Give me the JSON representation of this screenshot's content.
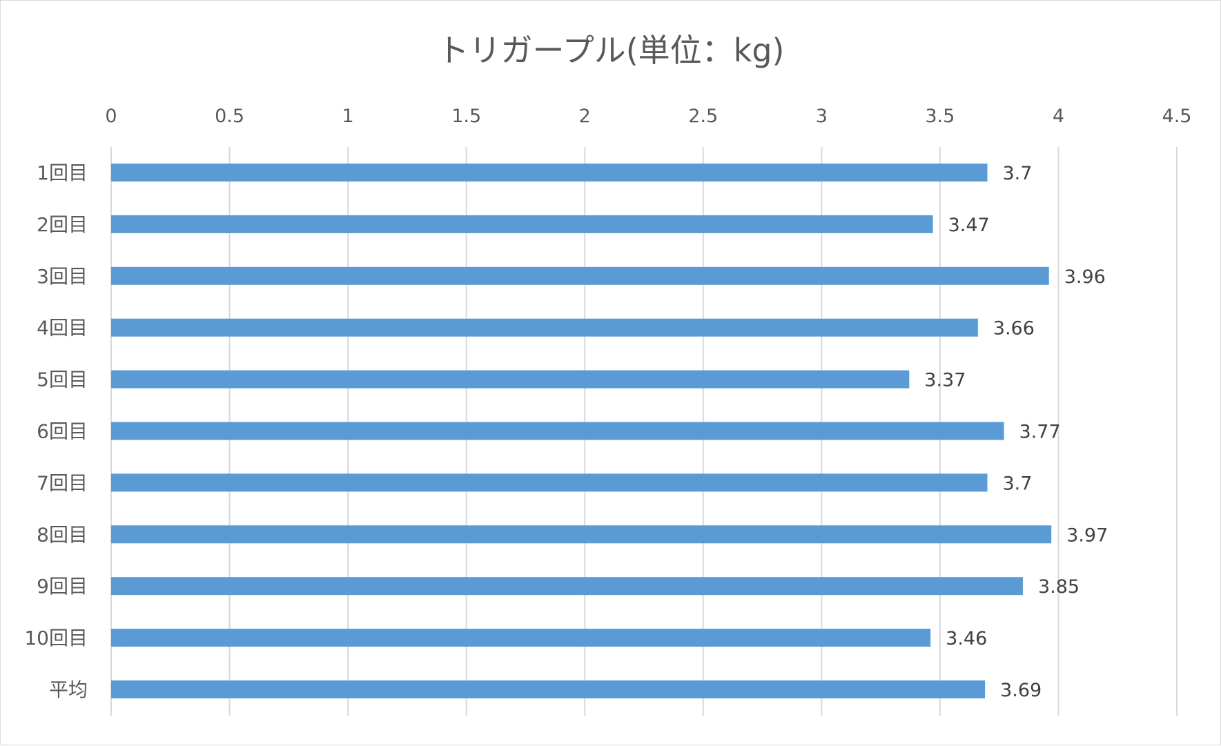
{
  "chart_data": {
    "type": "bar",
    "orientation": "horizontal",
    "title": "トリガープル(単位：kg)",
    "categories": [
      "1回目",
      "2回目",
      "3回目",
      "4回目",
      "5回目",
      "6回目",
      "7回目",
      "8回目",
      "9回目",
      "10回目",
      "平均"
    ],
    "values": [
      3.7,
      3.47,
      3.96,
      3.66,
      3.37,
      3.77,
      3.7,
      3.97,
      3.85,
      3.46,
      3.69
    ],
    "data_labels": [
      "3.7",
      "3.47",
      "3.96",
      "3.66",
      "3.37",
      "3.77",
      "3.7",
      "3.97",
      "3.85",
      "3.46",
      "3.69"
    ],
    "xlim": [
      0,
      4.5
    ],
    "x_ticks": [
      0,
      0.5,
      1,
      1.5,
      2,
      2.5,
      3,
      3.5,
      4,
      4.5
    ],
    "x_tick_labels": [
      "0",
      "0.5",
      "1",
      "1.5",
      "2",
      "2.5",
      "3",
      "3.5",
      "4",
      "4.5"
    ],
    "value_axis_position": "top",
    "grid": true,
    "legend": "none",
    "bar_color": "#5b9bd5"
  }
}
